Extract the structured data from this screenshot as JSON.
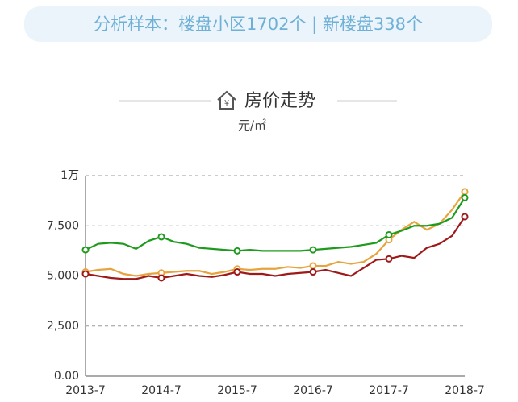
{
  "banner": {
    "text": "分析样本：楼盘小区1702个 | 新楼盘338个"
  },
  "chart_data": {
    "type": "line",
    "title": "房价走势",
    "unit": "元/㎡",
    "categories": [
      "2013-7",
      null,
      null,
      null,
      null,
      null,
      "2014-7",
      null,
      null,
      null,
      null,
      null,
      "2015-7",
      null,
      null,
      null,
      null,
      null,
      "2016-7",
      null,
      null,
      null,
      null,
      null,
      "2017-7",
      null,
      null,
      null,
      null,
      null,
      "2018-7"
    ],
    "series": [
      {
        "color": "#e8a33d",
        "values": [
          5200,
          5300,
          5350,
          5100,
          5000,
          5100,
          5150,
          5200,
          5250,
          5250,
          5100,
          5200,
          5350,
          5300,
          5350,
          5350,
          5450,
          5400,
          5500,
          5500,
          5700,
          5600,
          5700,
          6100,
          6800,
          7300,
          7700,
          7300,
          7600,
          8300,
          9200
        ]
      },
      {
        "color": "#1e9a1e",
        "values": [
          6300,
          6600,
          6650,
          6600,
          6350,
          6750,
          6950,
          6700,
          6600,
          6400,
          6350,
          6300,
          6250,
          6300,
          6250,
          6250,
          6250,
          6250,
          6300,
          6350,
          6400,
          6450,
          6550,
          6650,
          7050,
          7250,
          7500,
          7500,
          7600,
          7900,
          8900
        ]
      },
      {
        "color": "#9e1a1a",
        "values": [
          5100,
          5000,
          4900,
          4850,
          4850,
          5000,
          4900,
          5000,
          5100,
          5000,
          4950,
          5050,
          5200,
          5100,
          5100,
          5000,
          5100,
          5150,
          5200,
          5300,
          5150,
          5000,
          5400,
          5800,
          5850,
          6000,
          5900,
          6400,
          6600,
          7000,
          7950
        ]
      }
    ],
    "ylim": [
      0,
      10000
    ],
    "yticks": [
      {
        "value": 0,
        "label": "0.00"
      },
      {
        "value": 2500,
        "label": "2,500"
      },
      {
        "value": 5000,
        "label": "5,000"
      },
      {
        "value": 7500,
        "label": "7,500"
      },
      {
        "value": 10000,
        "label": "1万"
      }
    ],
    "grid": true
  }
}
